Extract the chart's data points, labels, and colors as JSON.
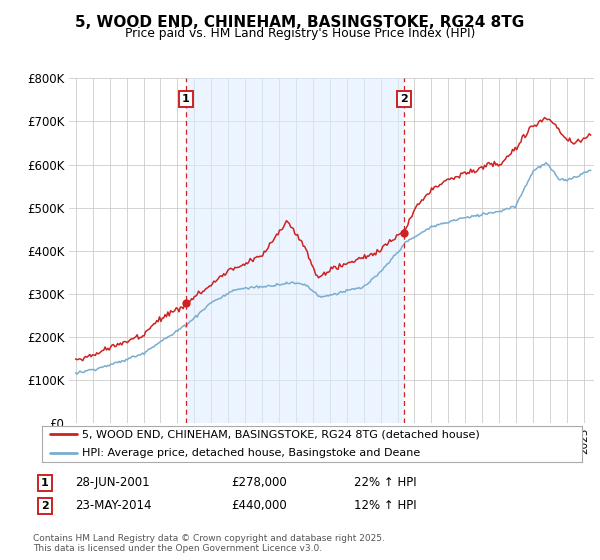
{
  "title": "5, WOOD END, CHINEHAM, BASINGSTOKE, RG24 8TG",
  "subtitle": "Price paid vs. HM Land Registry's House Price Index (HPI)",
  "ylabel_ticks": [
    "£0",
    "£100K",
    "£200K",
    "£300K",
    "£400K",
    "£500K",
    "£600K",
    "£700K",
    "£800K"
  ],
  "ytick_values": [
    0,
    100000,
    200000,
    300000,
    400000,
    500000,
    600000,
    700000,
    800000
  ],
  "ylim": [
    0,
    800000
  ],
  "xlim_start": 1994.6,
  "xlim_end": 2025.6,
  "line1_color": "#cc2222",
  "line2_color": "#7aadcf",
  "vline_color": "#cc2222",
  "vline1_x": 2001.49,
  "vline2_x": 2014.39,
  "shade_color": "#ddeeff",
  "shade_alpha": 0.55,
  "marker1_x": 2001.49,
  "marker1_y": 278000,
  "marker2_x": 2014.39,
  "marker2_y": 440000,
  "legend1": "5, WOOD END, CHINEHAM, BASINGSTOKE, RG24 8TG (detached house)",
  "legend2": "HPI: Average price, detached house, Basingstoke and Deane",
  "annotation1_date": "28-JUN-2001",
  "annotation1_price": "£278,000",
  "annotation1_hpi": "22% ↑ HPI",
  "annotation2_date": "23-MAY-2014",
  "annotation2_price": "£440,000",
  "annotation2_hpi": "12% ↑ HPI",
  "footer": "Contains HM Land Registry data © Crown copyright and database right 2025.\nThis data is licensed under the Open Government Licence v3.0.",
  "background_color": "#ffffff",
  "grid_color": "#cccccc"
}
